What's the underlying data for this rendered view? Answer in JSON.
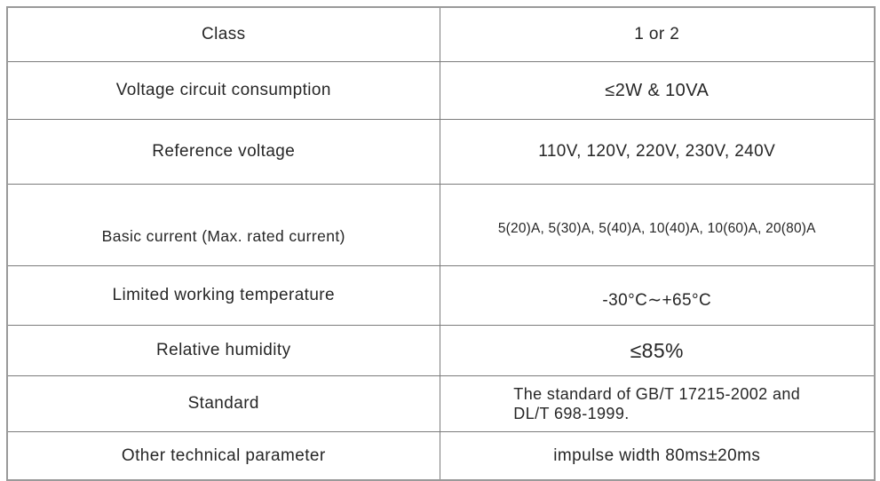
{
  "spec_table": {
    "border_color": "#7b7b7b",
    "outer_border_color": "#9a9a9a",
    "text_color": "#262626",
    "rows": [
      {
        "label": "Class",
        "value": "1 or 2"
      },
      {
        "label": "Voltage circuit consumption",
        "value": "≤2W & 10VA"
      },
      {
        "label": "Reference voltage",
        "value": "110V, 120V, 220V, 230V, 240V"
      },
      {
        "label": "Basic current (Max. rated current)",
        "value": "5(20)A, 5(30)A, 5(40)A, 10(40)A, 10(60)A, 20(80)A"
      },
      {
        "label": "Limited working temperature",
        "value": "-30°C∼+65°C"
      },
      {
        "label": "Relative humidity",
        "value": "≤85%"
      },
      {
        "label": "Standard",
        "value": "The standard of GB/T 17215-2002 and\nDL/T 698-1999."
      },
      {
        "label": "Other technical parameter",
        "value": "impulse width 80ms±20ms"
      }
    ]
  }
}
